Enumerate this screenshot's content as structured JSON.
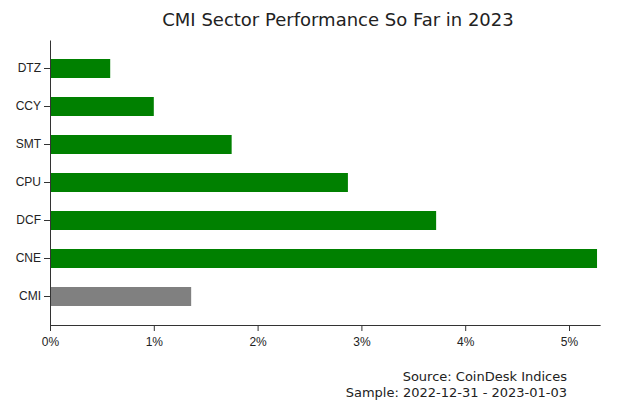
{
  "chart_data": {
    "type": "bar",
    "orientation": "horizontal",
    "title": "CMI Sector Performance So Far in 2023",
    "categories": [
      "DTZ",
      "CCY",
      "SMT",
      "CPU",
      "DCF",
      "CNE",
      "CMI"
    ],
    "values": [
      0.58,
      1.0,
      1.75,
      2.87,
      3.72,
      5.27,
      1.36
    ],
    "colors": [
      "#008000",
      "#008000",
      "#008000",
      "#008000",
      "#008000",
      "#008000",
      "#808080"
    ],
    "xlim": [
      0,
      5.3
    ],
    "xticks": [
      {
        "value": 0,
        "label": "0%"
      },
      {
        "value": 1,
        "label": "1%"
      },
      {
        "value": 2,
        "label": "2%"
      },
      {
        "value": 3,
        "label": "3%"
      },
      {
        "value": 4,
        "label": "4%"
      },
      {
        "value": 5,
        "label": "5%"
      }
    ],
    "grid": false,
    "annotations": [
      "Source: CoinDesk Indices",
      "Sample: 2022-12-31 - 2023-01-03"
    ]
  }
}
